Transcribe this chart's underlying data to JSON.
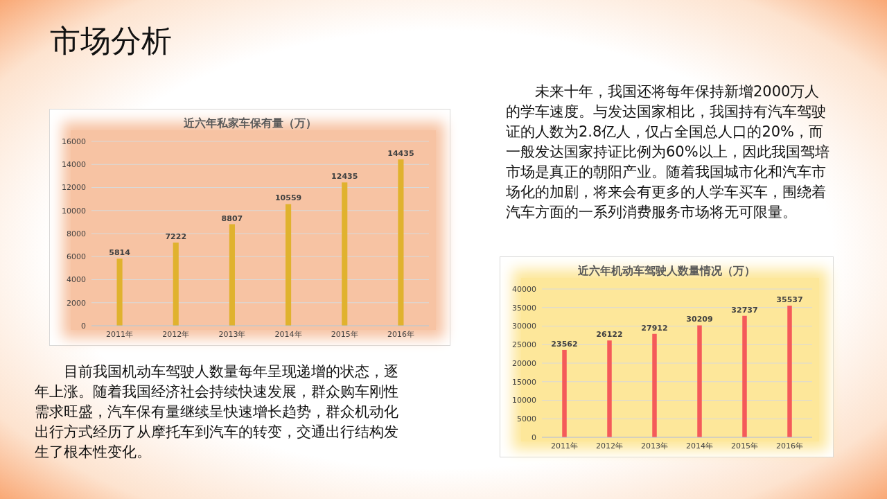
{
  "chart_data": [
    {
      "type": "other",
      "title": "市场分析",
      "annotations": [
        "未来十年，我国还将每年保持新增2000万人的学车速度。与发达国家相比，我国持有汽车驾驶证的人数为2.8亿人，仅占全国总人口的20%，而一般发达国家持证比例为60%以上，因此我国驾培市场是真正的朝阳产业。随着我国城市化和汽车市场化的加剧，将来会有更多的人学车买车，围绕着汽车方面的一系列消费服务市场将无可限量。",
        "目前我国机动车驾驶人数量每年呈现递增的状态，逐年上涨。随着我国经济社会持续快速发展，群众购车刚性需求旺盛，汽车保有量继续呈快速增长趋势，群众机动化出行方式经历了从摩托车到汽车的转变，交通出行结构发生了根本性变化。"
      ]
    },
    {
      "type": "bar",
      "title": "近六年私家车保有量（万）",
      "categories": [
        "2011年",
        "2012年",
        "2013年",
        "2014年",
        "2015年",
        "2016年"
      ],
      "values": [
        5814,
        7222,
        8807,
        10559,
        12435,
        14435
      ],
      "color": "#e0b22e",
      "ylim": [
        0,
        16000
      ],
      "yticks": [
        0,
        2000,
        4000,
        6000,
        8000,
        10000,
        12000,
        14000,
        16000
      ],
      "grid": "y",
      "data_labels": true
    },
    {
      "type": "bar",
      "title": "近六年机动车驾驶人数量情况（万）",
      "categories": [
        "2011年",
        "2012年",
        "2013年",
        "2014年",
        "2015年",
        "2016年"
      ],
      "values": [
        23562,
        26122,
        27912,
        30209,
        32737,
        35537
      ],
      "color": "#f45a5a",
      "ylim": [
        0,
        40000
      ],
      "yticks": [
        0,
        5000,
        10000,
        15000,
        20000,
        25000,
        30000,
        35000,
        40000
      ],
      "grid": "y",
      "data_labels": true
    }
  ]
}
